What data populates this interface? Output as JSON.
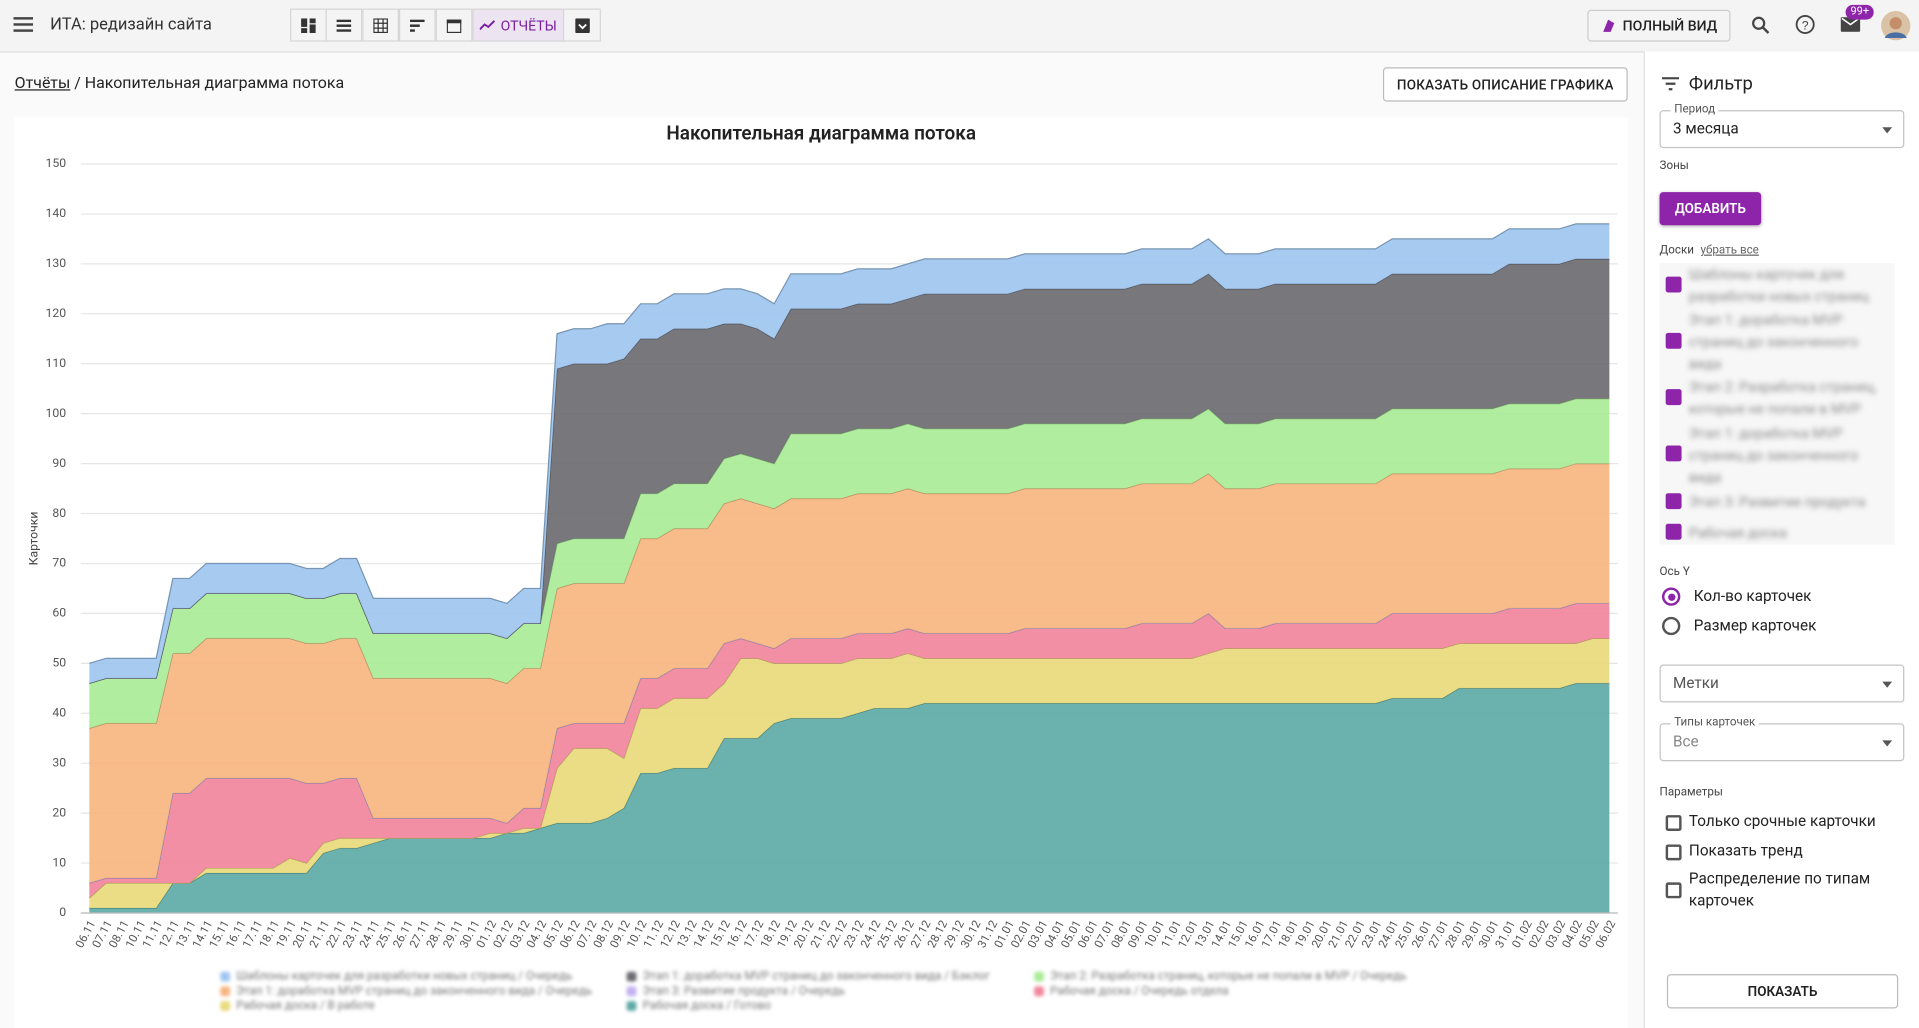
{
  "topbar": {
    "project": "ИТА: редизайн сайта",
    "reports_tab": "ОТЧЁТЫ",
    "full_view": "ПОЛНЫЙ ВИД",
    "badge": "99+"
  },
  "breadcrumb": {
    "root": "Отчёты",
    "separator": "/",
    "current": "Накопительная диаграмма потока"
  },
  "show_description": "ПОКАЗАТЬ ОПИСАНИЕ ГРАФИКА",
  "chart_data": {
    "type": "stacked_area",
    "title": "Накопительная диаграмма потока",
    "y_label": "Карточки",
    "categories": [
      "06.11",
      "07.11",
      "08.11",
      "10.11",
      "11.11",
      "12.11",
      "13.11",
      "14.11",
      "15.11",
      "16.11",
      "17.11",
      "18.11",
      "19.11",
      "20.11",
      "21.11",
      "22.11",
      "23.11",
      "24.11",
      "25.11",
      "26.11",
      "27.11",
      "28.11",
      "29.11",
      "30.11",
      "01.12",
      "02.12",
      "03.12",
      "04.12",
      "05.12",
      "06.12",
      "07.12",
      "08.12",
      "09.12",
      "10.12",
      "11.12",
      "12.12",
      "13.12",
      "14.12",
      "15.12",
      "16.12",
      "17.12",
      "18.12",
      "19.12",
      "20.12",
      "21.12",
      "22.12",
      "23.12",
      "24.12",
      "25.12",
      "26.12",
      "27.12",
      "28.12",
      "29.12",
      "30.12",
      "31.12",
      "01.01",
      "02.01",
      "03.01",
      "04.01",
      "05.01",
      "06.01",
      "07.01",
      "08.01",
      "09.01",
      "10.01",
      "11.01",
      "12.01",
      "13.01",
      "14.01",
      "15.01",
      "16.01",
      "17.01",
      "18.01",
      "19.01",
      "20.01",
      "21.01",
      "22.01",
      "23.01",
      "24.01",
      "25.01",
      "26.01",
      "27.01",
      "28.01",
      "29.01",
      "30.01",
      "31.01",
      "01.02",
      "02.02",
      "03.02",
      "04.02",
      "05.02",
      "06.02"
    ],
    "series": [
      {
        "name": "Шаблоны карточек для разработки новых страниц / Очередь",
        "color": "#9fc6f0",
        "values": [
          4,
          4,
          4,
          4,
          4,
          6,
          6,
          6,
          6,
          6,
          6,
          6,
          6,
          6,
          6,
          7,
          7,
          7,
          7,
          7,
          7,
          7,
          7,
          7,
          7,
          7,
          7,
          7,
          7,
          7,
          7,
          8,
          7,
          7,
          7,
          7,
          7,
          7,
          7,
          7,
          7,
          7,
          7,
          7,
          7,
          7,
          7,
          7,
          7,
          7,
          7,
          7,
          7,
          7,
          7,
          7,
          7,
          7,
          7,
          7,
          7,
          7,
          7,
          7,
          7,
          7,
          7,
          7,
          7,
          7,
          7,
          7,
          7,
          7,
          7,
          7,
          7,
          7,
          7,
          7,
          7,
          7,
          7,
          7,
          7,
          7,
          7,
          7,
          7,
          7,
          7,
          7
        ]
      },
      {
        "name": "Этап 1: доработка MVP страниц до законченного вида / Бэклог",
        "color": "#6c6b71",
        "values": [
          0,
          0,
          0,
          0,
          0,
          0,
          0,
          0,
          0,
          0,
          0,
          0,
          0,
          0,
          0,
          0,
          0,
          0,
          0,
          0,
          0,
          0,
          0,
          0,
          0,
          0,
          0,
          0,
          35,
          35,
          35,
          35,
          36,
          31,
          31,
          31,
          31,
          31,
          27,
          26,
          26,
          25,
          25,
          25,
          25,
          25,
          25,
          25,
          25,
          25,
          27,
          27,
          27,
          27,
          27,
          27,
          27,
          27,
          27,
          27,
          27,
          27,
          27,
          27,
          27,
          27,
          27,
          27,
          27,
          27,
          27,
          27,
          27,
          27,
          27,
          27,
          27,
          27,
          27,
          27,
          27,
          27,
          27,
          27,
          27,
          28,
          28,
          28,
          28,
          28,
          28,
          28
        ]
      },
      {
        "name": "Этап 2: Разработка страниц, которые не попали в MVP / Очередь",
        "color": "#a9ec97",
        "values": [
          9,
          9,
          9,
          9,
          9,
          9,
          9,
          9,
          9,
          9,
          9,
          9,
          9,
          9,
          9,
          9,
          9,
          9,
          9,
          9,
          9,
          9,
          9,
          9,
          9,
          9,
          9,
          9,
          9,
          9,
          9,
          9,
          9,
          9,
          9,
          9,
          9,
          9,
          9,
          9,
          9,
          9,
          13,
          13,
          13,
          13,
          13,
          13,
          13,
          13,
          13,
          13,
          13,
          13,
          13,
          13,
          13,
          13,
          13,
          13,
          13,
          13,
          13,
          13,
          13,
          13,
          13,
          13,
          13,
          13,
          13,
          13,
          13,
          13,
          13,
          13,
          13,
          13,
          13,
          13,
          13,
          13,
          13,
          13,
          13,
          13,
          13,
          13,
          13,
          13,
          13,
          13
        ]
      },
      {
        "name": "Этап 1: доработка MVP страниц до законченного вида / Очередь",
        "color": "#f7b580",
        "values": [
          31,
          31,
          31,
          31,
          31,
          28,
          28,
          28,
          28,
          28,
          28,
          28,
          28,
          28,
          28,
          28,
          28,
          28,
          28,
          28,
          28,
          28,
          28,
          28,
          28,
          28,
          28,
          28,
          28,
          28,
          28,
          28,
          28,
          28,
          28,
          28,
          28,
          28,
          28,
          28,
          28,
          28,
          28,
          28,
          28,
          28,
          28,
          28,
          28,
          28,
          28,
          28,
          28,
          28,
          28,
          28,
          28,
          28,
          28,
          28,
          28,
          28,
          28,
          28,
          28,
          28,
          28,
          28,
          28,
          28,
          28,
          28,
          28,
          28,
          28,
          28,
          28,
          28,
          28,
          28,
          28,
          28,
          28,
          28,
          28,
          28,
          28,
          28,
          28,
          28,
          28,
          28
        ]
      },
      {
        "name": "Этап 3: Развитие продукта / Очередь",
        "color": "#c3b2f0",
        "values": [
          0,
          0,
          0,
          0,
          0,
          0,
          0,
          0,
          0,
          0,
          0,
          0,
          0,
          0,
          0,
          0,
          0,
          0,
          0,
          0,
          0,
          0,
          0,
          0,
          0,
          0,
          0,
          0,
          0,
          0,
          0,
          0,
          0,
          0,
          0,
          0,
          0,
          0,
          0,
          0,
          0,
          0,
          0,
          0,
          0,
          0,
          0,
          0,
          0,
          0,
          0,
          0,
          0,
          0,
          0,
          0,
          0,
          0,
          0,
          0,
          0,
          0,
          0,
          0,
          0,
          0,
          0,
          0,
          0,
          0,
          0,
          0,
          0,
          0,
          0,
          0,
          0,
          0,
          0,
          0,
          0,
          0,
          0,
          0,
          0,
          0,
          0,
          0,
          0,
          0,
          0,
          0
        ]
      },
      {
        "name": "Рабочая доска / Очередь отдела",
        "color": "#f2869c",
        "values": [
          3,
          1,
          1,
          1,
          1,
          18,
          18,
          18,
          18,
          18,
          18,
          18,
          16,
          16,
          12,
          12,
          12,
          4,
          4,
          4,
          4,
          4,
          4,
          4,
          3,
          2,
          4,
          4,
          8,
          5,
          5,
          5,
          7,
          6,
          6,
          6,
          6,
          6,
          8,
          4,
          3,
          3,
          5,
          5,
          5,
          5,
          5,
          5,
          5,
          5,
          5,
          5,
          5,
          5,
          5,
          5,
          6,
          6,
          6,
          6,
          6,
          6,
          6,
          7,
          7,
          7,
          7,
          8,
          4,
          4,
          4,
          5,
          5,
          5,
          5,
          5,
          5,
          5,
          7,
          7,
          7,
          7,
          6,
          6,
          6,
          7,
          7,
          7,
          7,
          8,
          7,
          7
        ]
      },
      {
        "name": "Рабочая доска / В работе",
        "color": "#e8da7c",
        "values": [
          2,
          5,
          5,
          5,
          5,
          0,
          0,
          1,
          1,
          1,
          1,
          1,
          3,
          2,
          2,
          2,
          2,
          1,
          0,
          0,
          0,
          0,
          0,
          0,
          1,
          0,
          1,
          0,
          11,
          15,
          15,
          14,
          10,
          13,
          13,
          14,
          14,
          14,
          11,
          16,
          16,
          12,
          11,
          11,
          11,
          11,
          11,
          10,
          10,
          11,
          9,
          9,
          9,
          9,
          9,
          9,
          9,
          9,
          9,
          9,
          9,
          9,
          9,
          9,
          9,
          9,
          9,
          10,
          11,
          11,
          11,
          11,
          11,
          11,
          11,
          11,
          11,
          11,
          10,
          10,
          10,
          10,
          9,
          9,
          9,
          9,
          9,
          9,
          9,
          8,
          9,
          9
        ]
      },
      {
        "name": "Рабочая доска / Готово",
        "color": "#5eaaa6",
        "values": [
          1,
          1,
          1,
          1,
          1,
          6,
          6,
          8,
          8,
          8,
          8,
          8,
          8,
          8,
          12,
          13,
          13,
          14,
          15,
          15,
          15,
          15,
          15,
          15,
          15,
          16,
          16,
          17,
          18,
          18,
          18,
          19,
          21,
          28,
          28,
          29,
          29,
          29,
          35,
          35,
          35,
          38,
          39,
          39,
          39,
          39,
          40,
          41,
          41,
          41,
          42,
          42,
          42,
          42,
          42,
          42,
          42,
          42,
          42,
          42,
          42,
          42,
          42,
          42,
          42,
          42,
          42,
          42,
          42,
          42,
          42,
          42,
          42,
          42,
          42,
          42,
          42,
          42,
          43,
          43,
          43,
          43,
          45,
          45,
          45,
          45,
          45,
          45,
          45,
          46,
          46,
          46
        ]
      }
    ],
    "ylim": [
      0,
      150
    ],
    "yticks": [
      0,
      10,
      20,
      30,
      40,
      50,
      60,
      70,
      80,
      90,
      100,
      110,
      120,
      130,
      140,
      150
    ],
    "grid": true
  },
  "filter": {
    "title": "Фильтр",
    "period_label": "Период",
    "period": "3 месяца",
    "zones": "Зоны",
    "add": "ДОБАВИТЬ",
    "boards": "Доски",
    "remove_all": "убрать все",
    "board_list": [
      "Шаблоны карточек для разработки новых страниц",
      "Этап 1: доработка MVP страниц до законченного вида",
      "Этап 2: Разработка страниц, которые не попали в MVP",
      "Этап 1: доработка MVP страниц до законченного вида",
      "Этап 3: Развитие продукта",
      "Рабочая доска"
    ],
    "axis_y": "Ось Y",
    "y_options": [
      "Кол-во карточек",
      "Размер карточек"
    ],
    "tags": "Метки",
    "card_types_label": "Типы карточек",
    "card_types": "Все",
    "params": "Параметры",
    "param_options": [
      "Только срочные карточки",
      "Показать тренд",
      "Распределение по типам карточек"
    ],
    "show": "ПОКАЗАТЬ"
  }
}
